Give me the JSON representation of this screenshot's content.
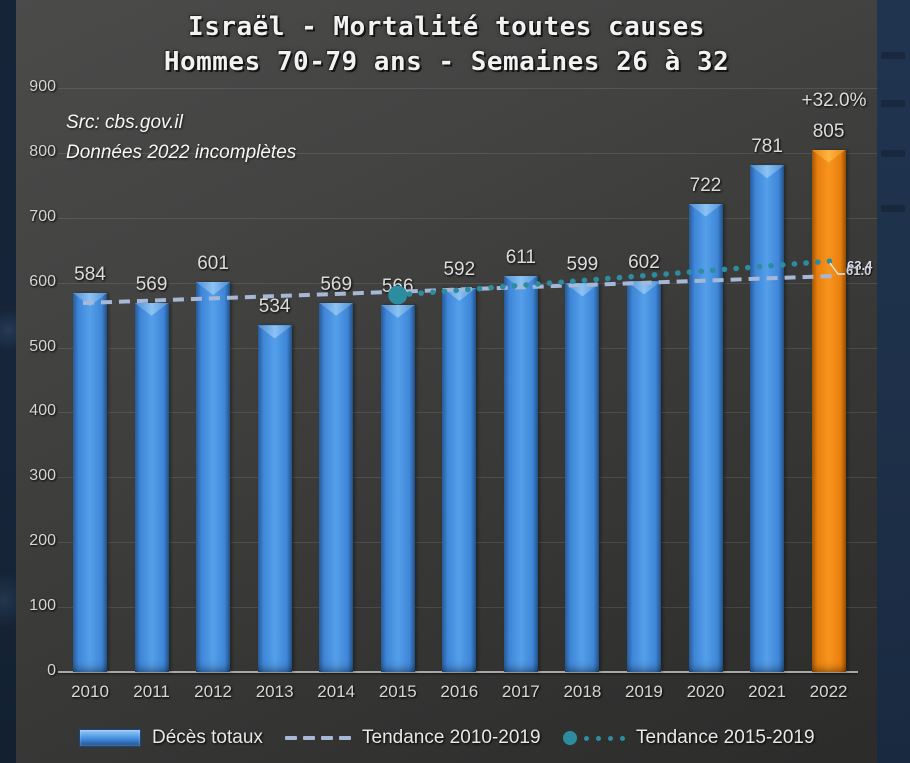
{
  "title": {
    "line1": "Israël - Mortalité toutes causes",
    "line2": "Hommes 70-79 ans - Semaines 26 à 32"
  },
  "source": {
    "line1": "Src: cbs.gov.il",
    "line2": "Données 2022 incomplètes"
  },
  "annotations": {
    "pct_change": "+32.0%",
    "trend_end_label_teal": "63.4",
    "trend_end_label_blue": "61.0"
  },
  "legend": [
    {
      "label": "Décès totaux",
      "type": "bar-swatch"
    },
    {
      "label": "Tendance 2010-2019",
      "type": "dashed-line"
    },
    {
      "label": "Tendance 2015-2019",
      "type": "dotted-line"
    }
  ],
  "colors": {
    "bar_blue": "#3f86d8",
    "bar_orange": "#f8941c",
    "trend_dashed": "#a7b7d6",
    "trend_dotted": "#2d8da0",
    "label_text": "#dcdcdc",
    "background": "#3a3a39",
    "side_strip": "#1e3049"
  },
  "chart_data": {
    "type": "bar",
    "title": "Israël - Mortalité toutes causes — Hommes 70-79 ans - Semaines 26 à 32",
    "categories": [
      "2010",
      "2011",
      "2012",
      "2013",
      "2014",
      "2015",
      "2016",
      "2017",
      "2018",
      "2019",
      "2020",
      "2021",
      "2022"
    ],
    "values": [
      584,
      569,
      601,
      534,
      569,
      566,
      592,
      611,
      599,
      602,
      722,
      781,
      805
    ],
    "highlight_index": 12,
    "ylim": [
      0,
      900
    ],
    "ytick_step": 100,
    "grid": true,
    "legend_position": "bottom",
    "series": [
      {
        "name": "Tendance 2010-2019",
        "style": "dashed",
        "color": "#a7b7d6",
        "x_start": 2010,
        "y_start": 569,
        "x_end": 2022,
        "y_end": 610,
        "end_label": "61.0"
      },
      {
        "name": "Tendance 2015-2019",
        "style": "dotted",
        "color": "#2d8da0",
        "x_start": 2015,
        "y_start": 581,
        "x_end": 2022,
        "y_end": 633,
        "end_label": "63.4",
        "marker_at_start": true
      }
    ],
    "annotation_2022_pct": "+32.0%"
  }
}
